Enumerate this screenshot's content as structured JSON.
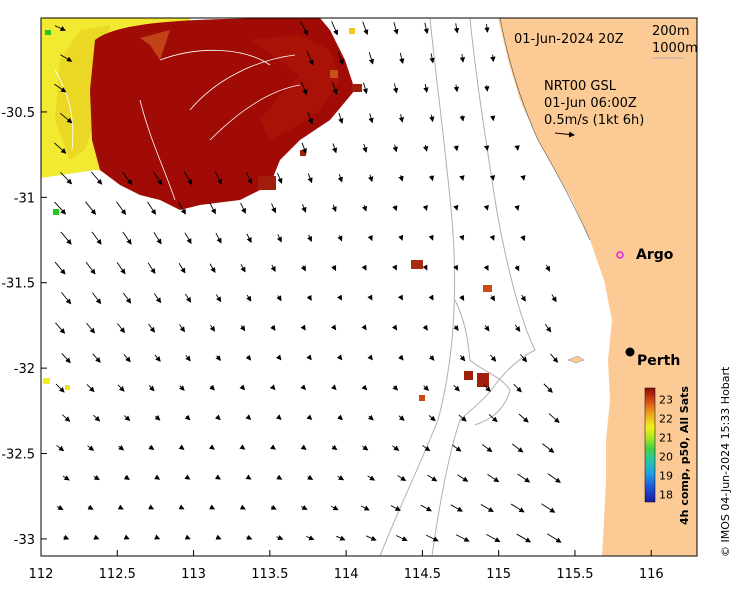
{
  "map": {
    "date_label": "01-Jun-2024 20Z",
    "contours": [
      "200m",
      "1000m"
    ],
    "current_product": "NRT00 GSL",
    "current_time": "01-Jun 06:00Z",
    "current_scale": "0.5m/s (1kt 6h)",
    "places": [
      {
        "name": "Argo",
        "lon": 115.8,
        "lat": -31.45,
        "marker": "magenta-ring"
      },
      {
        "name": "Perth",
        "lon": 115.86,
        "lat": -31.95,
        "marker": "black-dot"
      }
    ],
    "credit": "© IMOS 04-Jun-2024 15:33 Hobart",
    "land_color": "#fccb95",
    "extent": {
      "lon_min": 112,
      "lon_max": 116.3,
      "lat_min": -33.1,
      "lat_max": -29.95
    }
  },
  "axes": {
    "x_ticks": [
      "112",
      "112.5",
      "113",
      "113.5",
      "114",
      "114.5",
      "115",
      "115.5",
      "116"
    ],
    "x_values": [
      112,
      112.5,
      113,
      113.5,
      114,
      114.5,
      115,
      115.5,
      116
    ],
    "y_ticks": [
      "-30.5",
      "-31",
      "-31.5",
      "-32",
      "-32.5",
      "-33"
    ],
    "y_values": [
      -30.5,
      -31,
      -31.5,
      -32,
      -32.5,
      -33
    ]
  },
  "colorbar": {
    "title": "4h comp, p50, All Sats",
    "ticks": [
      "18",
      "19",
      "20",
      "21",
      "22",
      "23"
    ],
    "min": 17.6,
    "max": 23.6,
    "colors": [
      "#1a1aa0",
      "#1e50d8",
      "#1ea0e6",
      "#28c8a0",
      "#46d246",
      "#b4e61e",
      "#f0f01e",
      "#f0b41e",
      "#e6781e",
      "#c83c14",
      "#a01e0a",
      "#8c0a05"
    ]
  }
}
